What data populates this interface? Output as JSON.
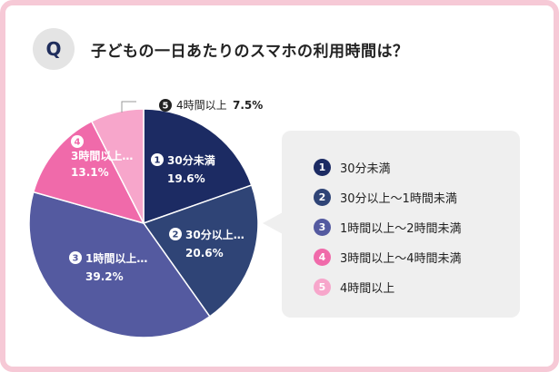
{
  "header": {
    "badge": "Q",
    "title": "子どもの一日あたりのスマホの利用時間は？"
  },
  "colors": {
    "frame": "#f6c9d6",
    "badge_bg": "#e4e4e4",
    "legend_bg": "#efefef"
  },
  "chart_data": {
    "type": "pie",
    "title": "子どもの一日あたりのスマホの利用時間は？",
    "unit": "%",
    "start": "12 o'clock, clockwise",
    "slices": [
      {
        "num": "1",
        "label": "30分未満",
        "short": "30分未満",
        "value": 19.6,
        "display": "19.6%",
        "color": "#1c2b63"
      },
      {
        "num": "2",
        "label": "30分以上～1時間未満",
        "short": "30分以上…",
        "value": 20.6,
        "display": "20.6%",
        "color": "#2f4476"
      },
      {
        "num": "3",
        "label": "1時間以上～2時間未満",
        "short": "1時間以上…",
        "value": 39.2,
        "display": "39.2%",
        "color": "#545aa0"
      },
      {
        "num": "4",
        "label": "3時間以上～4時間未満",
        "short": "3時間以上…",
        "value": 13.1,
        "display": "13.1%",
        "color": "#f06aaa"
      },
      {
        "num": "5",
        "label": "4時間以上",
        "short": "4時間以上",
        "value": 7.5,
        "display": "7.5%",
        "color": "#f7a6cb"
      }
    ]
  }
}
